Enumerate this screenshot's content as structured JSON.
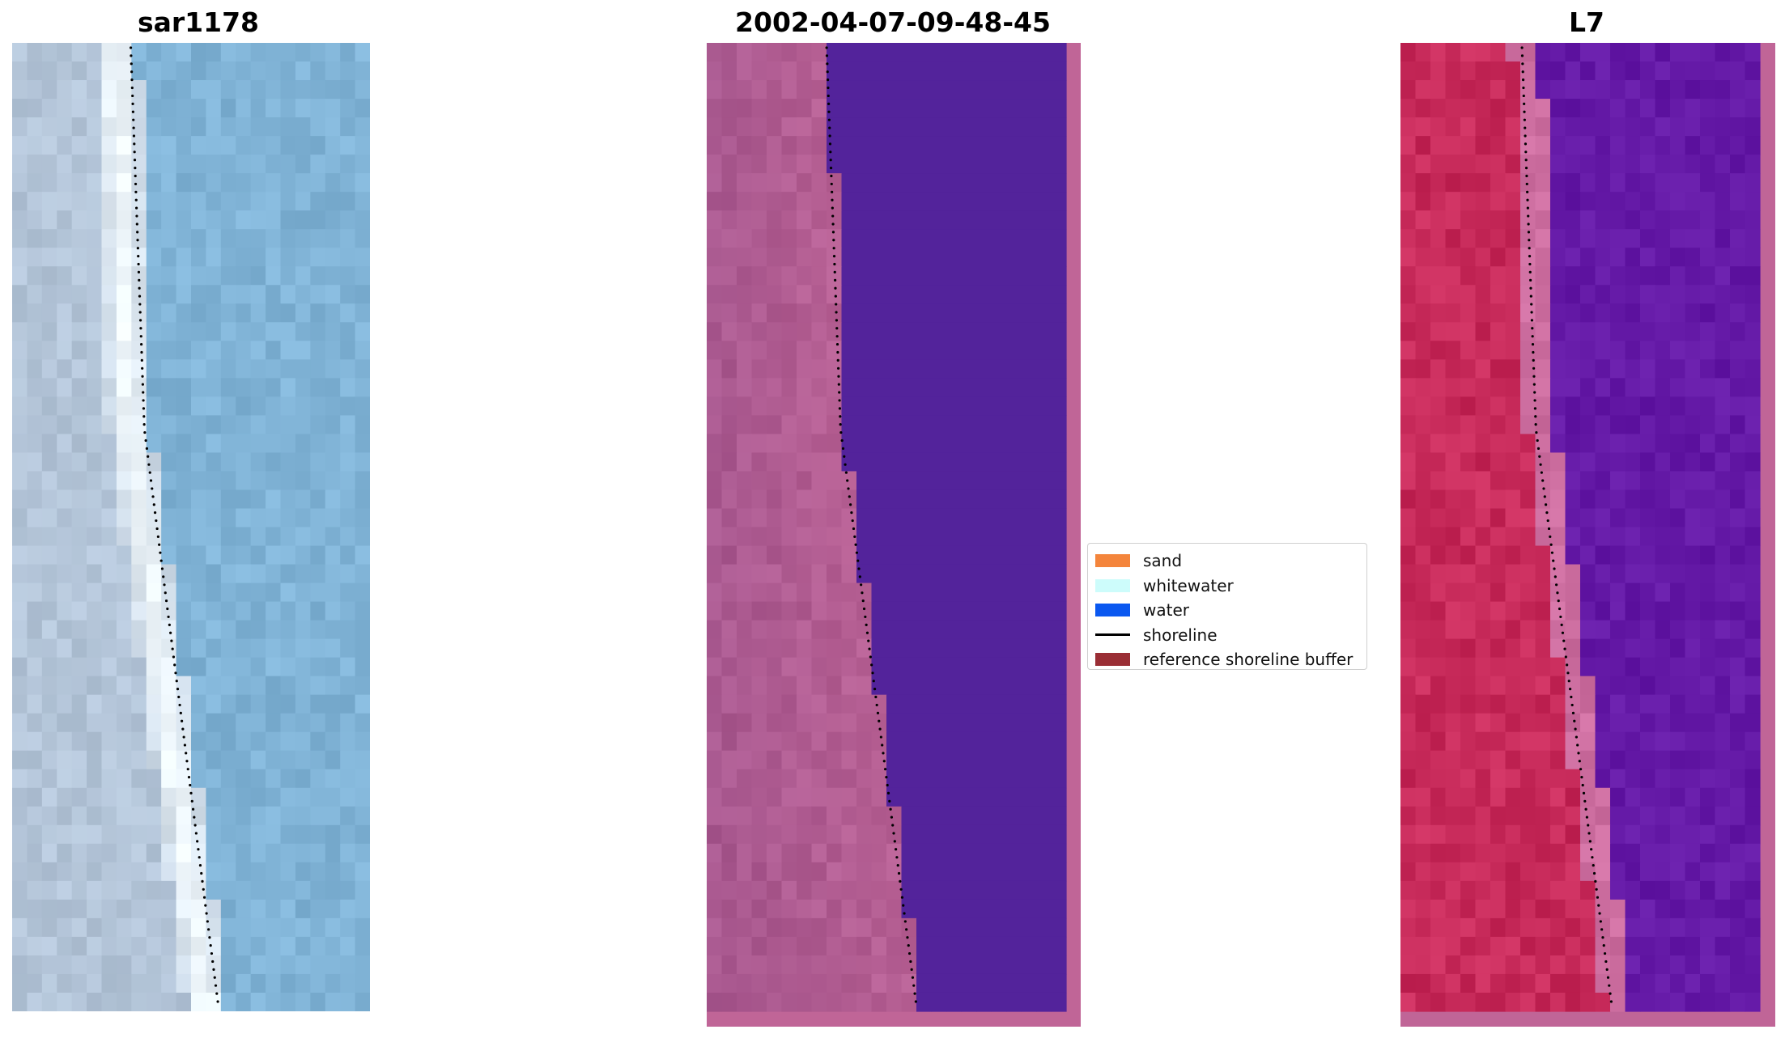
{
  "panels": [
    {
      "title": "sar1178"
    },
    {
      "title": "2002-04-07-09-48-45"
    },
    {
      "title": "L7"
    }
  ],
  "legend": {
    "items": [
      {
        "label": "sand",
        "color": "#f4853c",
        "kind": "patch"
      },
      {
        "label": "whitewater",
        "color": "#cdfcfb",
        "kind": "patch"
      },
      {
        "label": "water",
        "color": "#0a58f0",
        "kind": "patch"
      },
      {
        "label": "shoreline",
        "color": "#000000",
        "kind": "line"
      },
      {
        "label": "reference shoreline buffer",
        "color": "#9a2e35",
        "kind": "patch"
      }
    ]
  },
  "colors": {
    "rgb_land": "#a9bcd2",
    "rgb_water": "#80b3d6",
    "rgb_surf": "#eef6fb",
    "class_land": "#a8588f",
    "class_water": "#53239b",
    "class_border": "#c06597",
    "ndwi_land": "#c72a5a",
    "ndwi_water": "#6419a6",
    "shoreline_dots": "#000000"
  }
}
